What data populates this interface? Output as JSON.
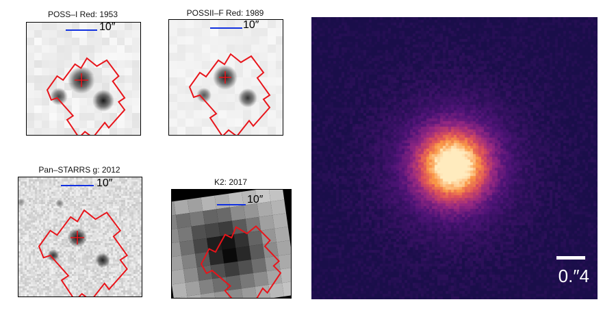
{
  "panels": [
    {
      "id": "poss1",
      "title": "POSS–I Red: 1953",
      "scale_label": "10″"
    },
    {
      "id": "poss2",
      "title": "POSSII–F Red: 1989",
      "scale_label": "10″"
    },
    {
      "id": "panstarrs",
      "title": "Pan–STARRS g: 2012",
      "scale_label": "10″"
    },
    {
      "id": "k2",
      "title": "K2: 2017",
      "scale_label": "10″"
    }
  ],
  "main_image": {
    "scale_label": "0.″4"
  },
  "colors": {
    "aperture": "#e8141a",
    "scalebar": "#1030e0",
    "crosshair": "#e8141a"
  }
}
